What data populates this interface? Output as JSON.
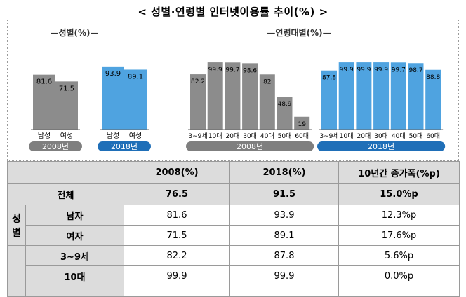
{
  "page_title": "< 성별·연령별 인터넷이용률 추이(%) >",
  "chart_data": [
    {
      "type": "bar",
      "title": "—성별(%)—",
      "series": [
        {
          "group": "2008년",
          "color": "#8c8c8c",
          "categories": [
            "남성",
            "여성"
          ],
          "values": [
            81.6,
            71.5
          ]
        },
        {
          "group": "2018년",
          "color": "#4fa3e0",
          "categories": [
            "남성",
            "여성"
          ],
          "values": [
            93.9,
            89.1
          ]
        }
      ],
      "group_label_colors": {
        "2008년": "#7f7f7f",
        "2018년": "#1f6fb8"
      }
    },
    {
      "type": "bar",
      "title": "—연령대별(%)—",
      "series": [
        {
          "group": "2008년",
          "color": "#8c8c8c",
          "categories": [
            "3~9세",
            "10대",
            "20대",
            "30대",
            "40대",
            "50대",
            "60대"
          ],
          "values": [
            82.2,
            99.9,
            99.7,
            98.6,
            82.0,
            48.9,
            19.0
          ]
        },
        {
          "group": "2018년",
          "color": "#4fa3e0",
          "categories": [
            "3~9세",
            "10대",
            "20대",
            "30대",
            "40대",
            "50대",
            "60대"
          ],
          "values": [
            87.8,
            99.9,
            99.9,
            99.9,
            99.7,
            98.7,
            88.8
          ]
        }
      ],
      "group_label_colors": {
        "2008년": "#7f7f7f",
        "2018년": "#1f6fb8"
      }
    }
  ],
  "table": {
    "headers": [
      "",
      "2008(%)",
      "2018(%)",
      "10년간 증가폭(%p)"
    ],
    "total": {
      "label": "전체",
      "v2008": "76.5",
      "v2018": "91.5",
      "inc": "15.0%p"
    },
    "gender": {
      "label": "성별",
      "rows": [
        {
          "label": "남자",
          "v2008": "81.6",
          "v2018": "93.9",
          "inc": "12.3%p"
        },
        {
          "label": "여자",
          "v2008": "71.5",
          "v2018": "89.1",
          "inc": "17.6%p"
        }
      ]
    },
    "age": {
      "rows": [
        {
          "label": "3~9세",
          "v2008": "82.2",
          "v2018": "87.8",
          "inc": "5.6%p"
        },
        {
          "label": "10대",
          "v2008": "99.9",
          "v2018": "99.9",
          "inc": "0.0%p"
        }
      ]
    }
  }
}
